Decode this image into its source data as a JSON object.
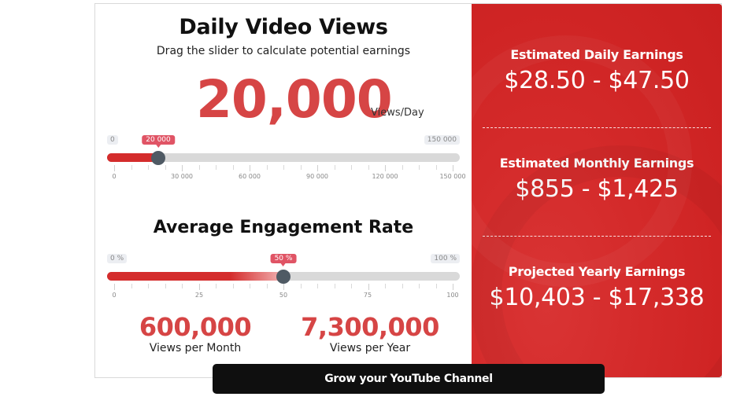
{
  "views_section": {
    "title": "Daily Video Views",
    "subtitle": "Drag the slider to calculate potential earnings",
    "value": "20,000",
    "unit": "Views/Day",
    "slider": {
      "min_label": "0",
      "max_label": "150 000",
      "value_label": "20 000",
      "min": 0,
      "max": 150000,
      "value": 20000,
      "tick_labels": [
        "0",
        "30 000",
        "60 000",
        "90 000",
        "120 000",
        "150 000"
      ]
    }
  },
  "engagement_section": {
    "title": "Average Engagement Rate",
    "slider": {
      "min_label": "0 %",
      "max_label": "100 %",
      "value_label": "50 %",
      "min": 0,
      "max": 100,
      "value": 50,
      "tick_labels": [
        "0",
        "25",
        "50",
        "75",
        "100"
      ]
    }
  },
  "stats": {
    "monthly": {
      "value": "600,000",
      "label": "Views per Month"
    },
    "yearly": {
      "value": "7,300,000",
      "label": "Views per Year"
    }
  },
  "earnings": {
    "daily": {
      "label": "Estimated Daily Earnings",
      "value": "$28.50 - $47.50"
    },
    "monthly": {
      "label": "Estimated Monthly Earnings",
      "value": "$855 - $1,425"
    },
    "yearly": {
      "label": "Projected Yearly Earnings",
      "value": "$10,403 - $17,338"
    }
  },
  "cta": {
    "label": "Grow your YouTube Channel"
  },
  "colors": {
    "accent_red": "#d64545",
    "panel_red": "#d42a2a",
    "slider_thumb": "#4f5a64",
    "cta_bg": "#0f0f0f"
  }
}
